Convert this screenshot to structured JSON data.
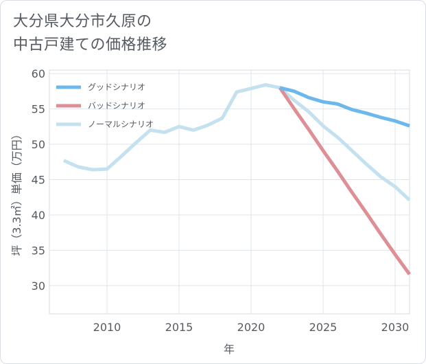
{
  "title_lines": [
    "大分県大分市久原の",
    "中古戸建ての価格推移"
  ],
  "chart_data": {
    "type": "line",
    "xlabel": "年",
    "ylabel": "坪（3.3㎡）単価（万円）",
    "xlim": [
      2006,
      2031
    ],
    "ylim": [
      26,
      60.5
    ],
    "x_ticks": [
      2010,
      2015,
      2020,
      2025,
      2030
    ],
    "y_ticks": [
      30,
      35,
      40,
      45,
      50,
      55,
      60
    ],
    "grid": true,
    "legend_position": "top-left",
    "series": [
      {
        "name": "グッドシナリオ",
        "color": "#6cb8ed",
        "x": [
          2022,
          2023,
          2024,
          2025,
          2026,
          2027,
          2028,
          2029,
          2030,
          2031
        ],
        "y": [
          58.0,
          57.5,
          56.6,
          56.0,
          55.7,
          54.9,
          54.4,
          53.8,
          53.3,
          52.6
        ]
      },
      {
        "name": "バッドシナリオ",
        "color": "#de8e95",
        "x": [
          2022,
          2023,
          2024,
          2025,
          2026,
          2027,
          2028,
          2029,
          2030,
          2031
        ],
        "y": [
          58.0,
          55.0,
          52.1,
          49.1,
          46.2,
          43.2,
          40.3,
          37.3,
          34.4,
          31.6
        ]
      },
      {
        "name": "ノーマルシナリオ",
        "color": "#c3e1ee",
        "x": [
          2007,
          2008,
          2009,
          2010,
          2011,
          2012,
          2013,
          2014,
          2015,
          2016,
          2017,
          2018,
          2019,
          2020,
          2021,
          2022,
          2023,
          2024,
          2025,
          2026,
          2027,
          2028,
          2029,
          2030,
          2031
        ],
        "y": [
          47.7,
          46.8,
          46.4,
          46.5,
          48.3,
          50.2,
          52.0,
          51.7,
          52.5,
          52.0,
          52.7,
          53.7,
          57.4,
          57.9,
          58.4,
          58.0,
          56.2,
          54.6,
          52.6,
          51.0,
          49.1,
          47.2,
          45.4,
          44.0,
          42.1
        ]
      }
    ],
    "draw_order": [
      2,
      1,
      0
    ]
  }
}
